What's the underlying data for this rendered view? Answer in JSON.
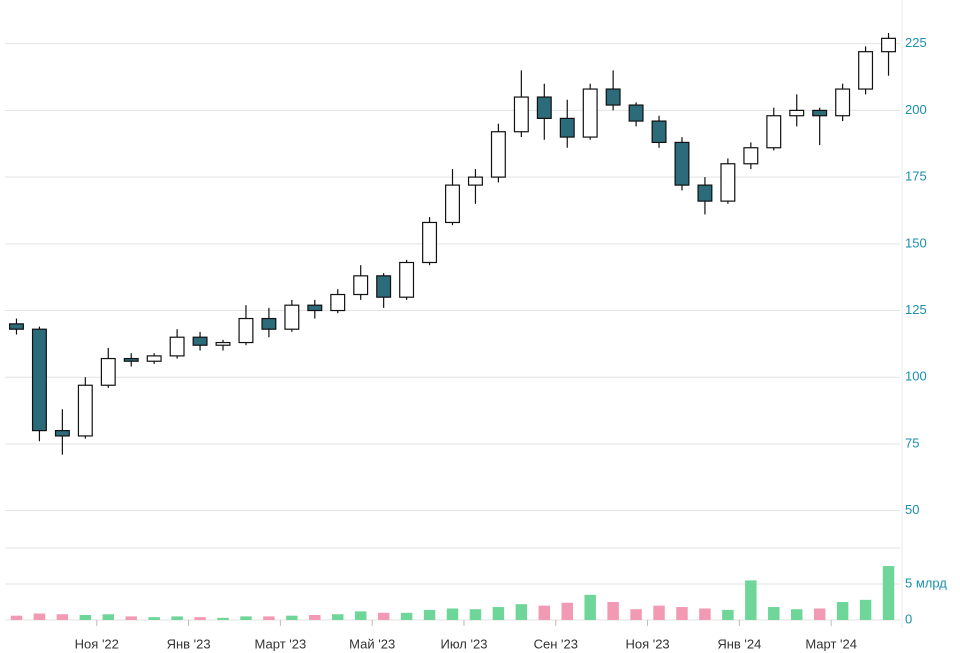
{
  "chart_data": {
    "type": "candlestick",
    "categories": [
      null,
      null,
      null,
      null,
      "Ноя '22",
      null,
      null,
      null,
      "Янв '23",
      null,
      null,
      null,
      "Март '23",
      null,
      null,
      null,
      "Май '23",
      null,
      null,
      null,
      "Июл '23",
      null,
      null,
      null,
      "Сен '23",
      null,
      null,
      null,
      "Ноя '23",
      null,
      null,
      null,
      "Янв '24",
      null,
      null,
      null,
      "Март '24",
      null,
      null
    ],
    "open": [
      120,
      118,
      80,
      78,
      97,
      107,
      106,
      108,
      115,
      112,
      113,
      122,
      118,
      127,
      125,
      131,
      138,
      130,
      143,
      158,
      172,
      175,
      192,
      205,
      197,
      190,
      208,
      202,
      196,
      188,
      172,
      166,
      180,
      186,
      198,
      200,
      198,
      208,
      222
    ],
    "high": [
      122,
      119,
      88,
      100,
      111,
      109,
      109,
      118,
      117,
      114,
      127,
      126,
      129,
      129,
      133,
      142,
      139,
      144,
      160,
      178,
      178,
      195,
      215,
      210,
      204,
      210,
      215,
      203,
      198,
      190,
      175,
      182,
      188,
      201,
      206,
      201,
      210,
      224,
      229
    ],
    "low": [
      116,
      76,
      71,
      77,
      96,
      104,
      105,
      107,
      110,
      110,
      112,
      115,
      117,
      122,
      124,
      129,
      126,
      129,
      142,
      157,
      165,
      173,
      190,
      189,
      186,
      189,
      200,
      194,
      186,
      170,
      161,
      165,
      178,
      185,
      194,
      187,
      196,
      206,
      213
    ],
    "close": [
      118,
      80,
      78,
      97,
      107,
      106,
      108,
      115,
      112,
      113,
      122,
      118,
      127,
      125,
      131,
      138,
      130,
      143,
      158,
      172,
      175,
      192,
      205,
      197,
      190,
      208,
      202,
      196,
      188,
      172,
      166,
      180,
      186,
      198,
      200,
      198,
      208,
      222,
      227
    ],
    "ylim": [
      45,
      235
    ],
    "yticks": [
      50,
      75,
      100,
      125,
      150,
      175,
      200,
      225
    ],
    "grid": true,
    "up_color": "#ffffff",
    "down_color": "#2b6b7a",
    "volume": {
      "values": [
        0.6,
        0.9,
        0.8,
        0.7,
        0.8,
        0.5,
        0.4,
        0.5,
        0.4,
        0.3,
        0.5,
        0.5,
        0.6,
        0.7,
        0.8,
        1.2,
        1.0,
        1.0,
        1.4,
        1.6,
        1.5,
        1.8,
        2.2,
        2.0,
        2.4,
        3.5,
        2.5,
        1.5,
        2.0,
        1.8,
        1.6,
        1.4,
        5.5,
        1.8,
        1.5,
        1.6,
        2.5,
        2.8,
        7.5
      ],
      "ylim": [
        0,
        10
      ],
      "yticks": [
        0,
        {
          "value": 5,
          "label": "5 млрд"
        }
      ],
      "up_color": "#6fd69a",
      "down_color": "#f29ab3"
    }
  }
}
